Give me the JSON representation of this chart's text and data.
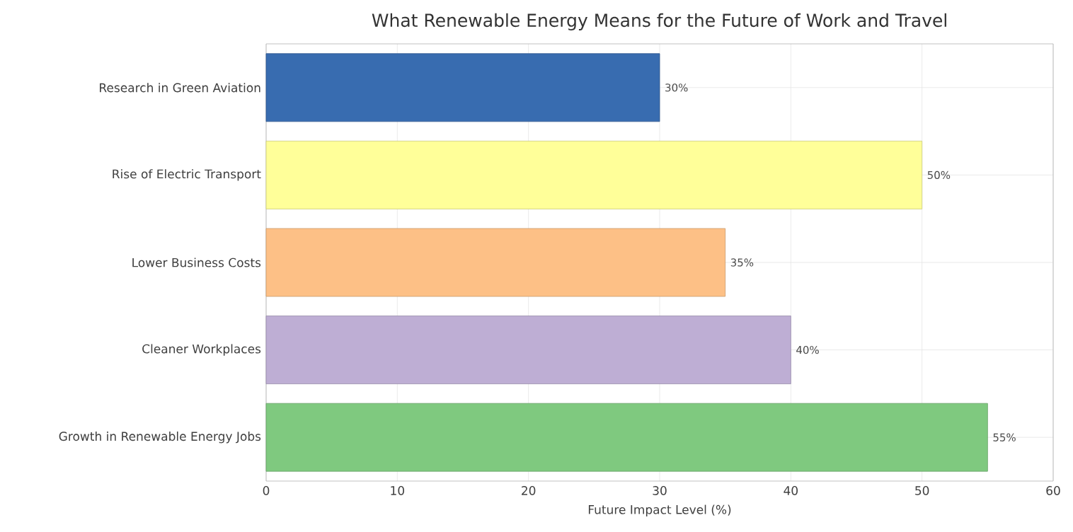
{
  "chart_data": {
    "type": "bar",
    "orientation": "horizontal",
    "title": "What Renewable Energy Means for the Future of Work and Travel",
    "xlabel": "Future Impact Level (%)",
    "categories": [
      "Research in Green Aviation",
      "Rise of Electric Transport",
      "Lower Business Costs",
      "Cleaner Workplaces",
      "Growth in Renewable Energy Jobs"
    ],
    "values": [
      30,
      50,
      35,
      40,
      55
    ],
    "value_labels": [
      "30%",
      "50%",
      "35%",
      "40%",
      "55%"
    ],
    "colors": [
      "#386cb0",
      "#ffff99",
      "#fdc086",
      "#beaed4",
      "#7fc97f"
    ],
    "xlim": [
      0,
      60
    ],
    "xticks": [
      0,
      10,
      20,
      30,
      40,
      50,
      60
    ],
    "grid": true
  }
}
